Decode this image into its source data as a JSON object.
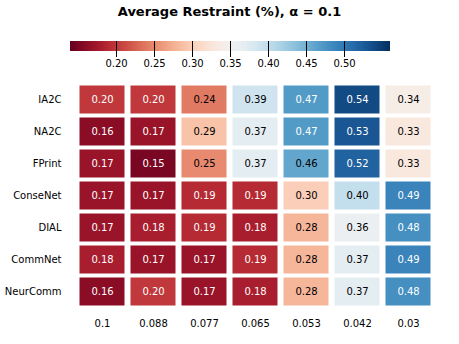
{
  "chart_data": {
    "type": "heatmap",
    "title": "Average Restraint (%), α = 0.1",
    "categories": [
      "0.1",
      "0.088",
      "0.077",
      "0.065",
      "0.053",
      "0.042",
      "0.03"
    ],
    "rows": [
      "IA2C",
      "NA2C",
      "FPrint",
      "ConseNet",
      "DIAL",
      "CommNet",
      "NeurComm"
    ],
    "values": [
      [
        0.2,
        0.2,
        0.24,
        0.39,
        0.47,
        0.54,
        0.34
      ],
      [
        0.16,
        0.17,
        0.29,
        0.37,
        0.47,
        0.53,
        0.33
      ],
      [
        0.17,
        0.15,
        0.25,
        0.37,
        0.46,
        0.52,
        0.33
      ],
      [
        0.17,
        0.17,
        0.19,
        0.19,
        0.3,
        0.4,
        0.49
      ],
      [
        0.17,
        0.18,
        0.19,
        0.18,
        0.28,
        0.36,
        0.48
      ],
      [
        0.18,
        0.17,
        0.17,
        0.19,
        0.28,
        0.37,
        0.49
      ],
      [
        0.16,
        0.2,
        0.17,
        0.18,
        0.28,
        0.37,
        0.48
      ]
    ],
    "value_labels": [
      [
        "0.20",
        "0.20",
        "0.24",
        "0.39",
        "0.47",
        "0.54",
        "0.34"
      ],
      [
        "0.16",
        "0.17",
        "0.29",
        "0.37",
        "0.47",
        "0.53",
        "0.33"
      ],
      [
        "0.17",
        "0.15",
        "0.25",
        "0.37",
        "0.46",
        "0.52",
        "0.33"
      ],
      [
        "0.17",
        "0.17",
        "0.19",
        "0.19",
        "0.30",
        "0.40",
        "0.49"
      ],
      [
        "0.17",
        "0.18",
        "0.19",
        "0.18",
        "0.28",
        "0.36",
        "0.48"
      ],
      [
        "0.18",
        "0.17",
        "0.17",
        "0.19",
        "0.28",
        "0.37",
        "0.49"
      ],
      [
        "0.16",
        "0.20",
        "0.17",
        "0.18",
        "0.28",
        "0.37",
        "0.48"
      ]
    ],
    "data_labels": true,
    "color": "RdBu",
    "color_range": [
      0.14,
      0.56
    ],
    "color_ticks": [
      {
        "value": 0.2,
        "label": "0.20"
      },
      0.25,
      {
        "value": 0.3,
        "label": "0.30"
      },
      0.35,
      {
        "value": 0.4,
        "label": "0.40"
      },
      0.45,
      {
        "value": 0.5,
        "label": "0.50"
      }
    ]
  }
}
